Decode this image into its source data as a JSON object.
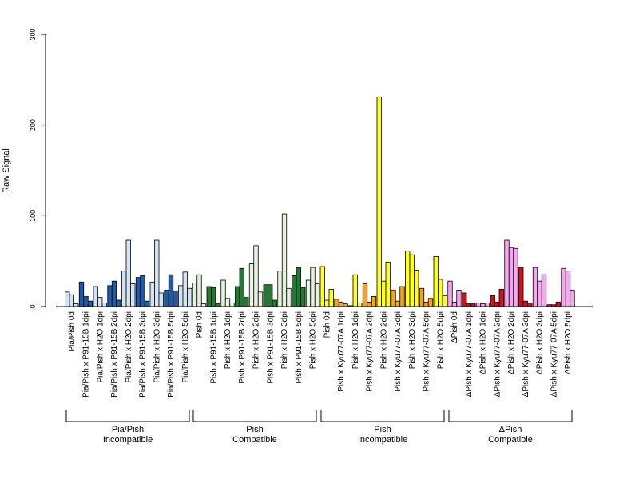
{
  "chart_data": {
    "type": "bar",
    "ylabel": "Raw Signal",
    "ylim": [
      0,
      300
    ],
    "yticks": [
      0,
      100,
      200,
      300
    ],
    "categories": [
      "Pia/Pish 0d",
      "Pia/Pish x P91-15B 1dpi",
      "Pia/Pish x H2O 1dpi",
      "Pia/Pish x P91-15B 2dpi",
      "Pia/Pish x H2O 2dpi",
      "Pia/Pish x P91-15B 3dpi",
      "Pia/Pish x H2O 3dpi",
      "Pia/Pish x P91-15B 5dpi",
      "Pia/Pish x H2O 5dpi",
      "Pish 0d",
      "Pish x P91-15B 1dpi",
      "Pish x H2O 1dpi",
      "Pish x P91-15B 2dpi",
      "Pish x H2O 2dpi",
      "Pish x P91-15B 3dpi",
      "Pish x H2O 3dpi",
      "Pish x P91-15B 5dpi",
      "Pish x H2O 5dpi",
      "Pish 0d",
      "Pish x Kyu77-07A 1dpi",
      "Pish x H2O 1dpi",
      "Pish x Kyu77-07A 2dpi",
      "Pish x H2O 2dpi",
      "Pish x Kyu77-07A 3dpi",
      "Pish x H2O 3dpi",
      "Pish x Kyu77-07A 5dpi",
      "Pish x H2O 5dpi",
      "ΔPish 0d",
      "ΔPish x Kyu77-07A 1dpi",
      "ΔPish x H2O 1dpi",
      "ΔPish x Kyu77-07A 2dpi",
      "ΔPish x H2O 2dpi",
      "ΔPish x Kyu77-07A 3dpi",
      "ΔPish x H2O 3dpi",
      "ΔPish x Kyu77-07A 5dpi",
      "ΔPish x H2O 5dpi"
    ],
    "bar_values": [
      [
        16,
        13,
        3
      ],
      [
        27,
        11,
        6
      ],
      [
        22,
        10,
        4
      ],
      [
        23,
        28,
        7
      ],
      [
        39,
        73,
        25
      ],
      [
        32,
        34,
        6
      ],
      [
        27,
        73,
        15
      ],
      [
        18,
        35,
        17
      ],
      [
        23,
        38,
        20
      ],
      [
        26,
        35,
        3
      ],
      [
        22,
        21,
        3
      ],
      [
        29,
        9,
        4
      ],
      [
        22,
        42,
        10
      ],
      [
        47,
        67,
        16
      ],
      [
        24,
        24,
        7
      ],
      [
        39,
        102,
        20
      ],
      [
        34,
        43,
        21
      ],
      [
        29,
        43,
        25
      ],
      [
        44,
        7,
        19
      ],
      [
        8,
        5,
        3
      ],
      [
        1,
        35,
        4
      ],
      [
        25,
        5,
        11
      ],
      [
        231,
        28,
        49
      ],
      [
        18,
        6,
        22
      ],
      [
        61,
        57,
        40
      ],
      [
        20,
        5,
        9
      ],
      [
        55,
        30,
        12
      ],
      [
        28,
        5,
        18
      ],
      [
        15,
        3,
        3
      ],
      [
        4,
        3,
        4
      ],
      [
        12,
        5,
        19
      ],
      [
        73,
        65,
        64
      ],
      [
        43,
        6,
        4
      ],
      [
        43,
        28,
        35
      ],
      [
        2,
        2,
        5
      ],
      [
        42,
        39,
        18
      ]
    ],
    "colors": {
      "pia_pish_inoculated": "#1f5aa6",
      "pia_pish_h2o": "#d5e4f2",
      "pish_compatible_inoculated": "#217a2f",
      "pish_compatible_h2o": "#e6f2e0",
      "pish_incompatible_inoculated": "#f7a21b",
      "pish_incompatible_h2o": "#ffff22",
      "dpish_inoculated": "#d2101c",
      "dpish_h2o": "#f4a8ef"
    },
    "groups": [
      {
        "label_line1": "Pia/Pish",
        "label_line2": "Incompatible",
        "start": 0,
        "end": 8
      },
      {
        "label_line1": "Pish",
        "label_line2": "Compatible",
        "start": 9,
        "end": 17
      },
      {
        "label_line1": "Pish",
        "label_line2": "Incompatible",
        "start": 18,
        "end": 26
      },
      {
        "label_line1": "ΔPish",
        "label_line2": "Compatible",
        "start": 27,
        "end": 35
      }
    ],
    "grid": false,
    "legend": "none"
  }
}
